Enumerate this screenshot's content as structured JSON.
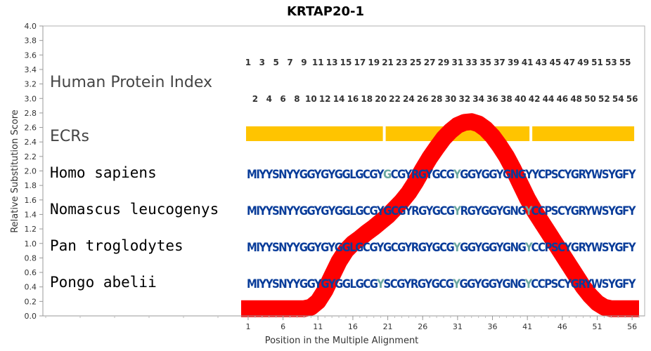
{
  "chart_data": {
    "type": "line",
    "title": "KRTAP20-1",
    "xlabel": "Position in the Multiple Alignment",
    "ylabel": "Relative Substitution Score",
    "xlim": [
      0,
      57
    ],
    "ylim": [
      0,
      4.0
    ],
    "y_ticks": [
      0.0,
      0.2,
      0.4,
      0.6,
      0.8,
      1.0,
      1.2,
      1.4,
      1.6,
      1.8,
      2.0,
      2.2,
      2.4,
      2.6,
      2.8,
      3.0,
      3.2,
      3.4,
      3.6,
      3.8,
      4.0
    ],
    "y_tick_labels": [
      "0.0",
      "0.2",
      "0.4",
      "0.6",
      "0.8",
      "1.0",
      "1.2",
      "1.4",
      "1.6",
      "1.8",
      "2.0",
      "2.2",
      "2.4",
      "2.6",
      "2.8",
      "3.0",
      "3.2",
      "3.4",
      "3.6",
      "3.8",
      "4.0"
    ],
    "x_ticks": [
      1,
      6,
      11,
      16,
      21,
      26,
      31,
      36,
      41,
      46,
      51,
      56
    ],
    "x_tick_labels": [
      "1",
      "6",
      "11",
      "16",
      "21",
      "26",
      "31",
      "36",
      "41",
      "46",
      "51",
      "56"
    ],
    "grid": false,
    "line_color": "#ff0000",
    "series": [
      {
        "x": [
          0,
          1,
          2,
          3,
          4,
          5,
          6,
          7,
          8,
          9,
          10,
          11,
          12,
          13,
          14,
          15,
          16,
          17,
          18,
          19,
          20,
          21,
          22,
          23,
          24,
          25,
          26,
          27,
          28,
          29,
          30,
          31,
          32,
          33,
          34,
          35,
          36,
          37,
          38,
          39,
          40,
          41,
          42,
          43,
          44,
          45,
          46,
          47,
          48,
          49,
          50,
          51,
          52,
          53,
          54,
          55,
          56,
          57
        ],
        "y": [
          0.1,
          0.1,
          0.1,
          0.1,
          0.1,
          0.1,
          0.1,
          0.1,
          0.1,
          0.1,
          0.12,
          0.2,
          0.35,
          0.55,
          0.75,
          0.9,
          1.0,
          1.07,
          1.15,
          1.22,
          1.3,
          1.38,
          1.48,
          1.58,
          1.7,
          1.85,
          2.02,
          2.18,
          2.32,
          2.45,
          2.55,
          2.63,
          2.67,
          2.68,
          2.65,
          2.58,
          2.48,
          2.35,
          2.2,
          2.02,
          1.82,
          1.62,
          1.45,
          1.3,
          1.15,
          1.0,
          0.85,
          0.7,
          0.55,
          0.4,
          0.28,
          0.18,
          0.12,
          0.1,
          0.1,
          0.1,
          0.1,
          0.1
        ]
      }
    ],
    "annotations": {
      "human_protein_index_label": "Human Protein Index",
      "ecrs_label": "ECRs",
      "ecr_color": "#ffc400",
      "ecr_segments": [
        [
          1,
          20
        ],
        [
          21,
          41
        ],
        [
          42,
          56
        ]
      ],
      "index_odd": [
        "1",
        "3",
        "5",
        "7",
        "9",
        "11",
        "13",
        "15",
        "17",
        "19",
        "21",
        "23",
        "25",
        "27",
        "29",
        "31",
        "33",
        "35",
        "37",
        "39",
        "41",
        "43",
        "45",
        "47",
        "49",
        "51",
        "53",
        "55"
      ],
      "index_even": [
        "2",
        "4",
        "6",
        "8",
        "10",
        "12",
        "14",
        "16",
        "18",
        "20",
        "22",
        "24",
        "26",
        "28",
        "30",
        "32",
        "34",
        "36",
        "38",
        "40",
        "42",
        "44",
        "46",
        "48",
        "50",
        "52",
        "54",
        "56"
      ],
      "residue_colors": {
        "conserved": "#0a3d9a",
        "variant": "#6aa7a0",
        "variant_dark": "#4a7f9a"
      },
      "species": [
        {
          "name": "Homo sapiens",
          "sequence": "MIYYSNYYGGYGYGGLGCGYGCGYRGYGCGYGGYGGYGNGYYCPSCYGRYWSYGFY",
          "variant_positions": [
            21,
            31
          ]
        },
        {
          "name": "Nomascus leucogenys",
          "sequence": "MIYYSNYYGGYGYGGLGCGYGCGYRGYGCGYRGYGGYGNGYCCPSCYGRYWSYGFY",
          "variant_positions": [
            31,
            41
          ]
        },
        {
          "name": "Pan troglodytes",
          "sequence": "MIYYSNYYGGYGYGGLGCGYGCGYRGYGCGYGGYGGYGNGYCCPSCYGRYWSYGFY",
          "variant_positions": [
            31,
            41
          ]
        },
        {
          "name": "Pongo abelii",
          "sequence": "MIYYSNYYGGYGYGGLGCGYSCGYRGYGCGYGGYGGYGNGYCCPSCYGRYWSYGFY",
          "variant_positions": [
            20,
            31,
            41
          ]
        }
      ]
    }
  }
}
